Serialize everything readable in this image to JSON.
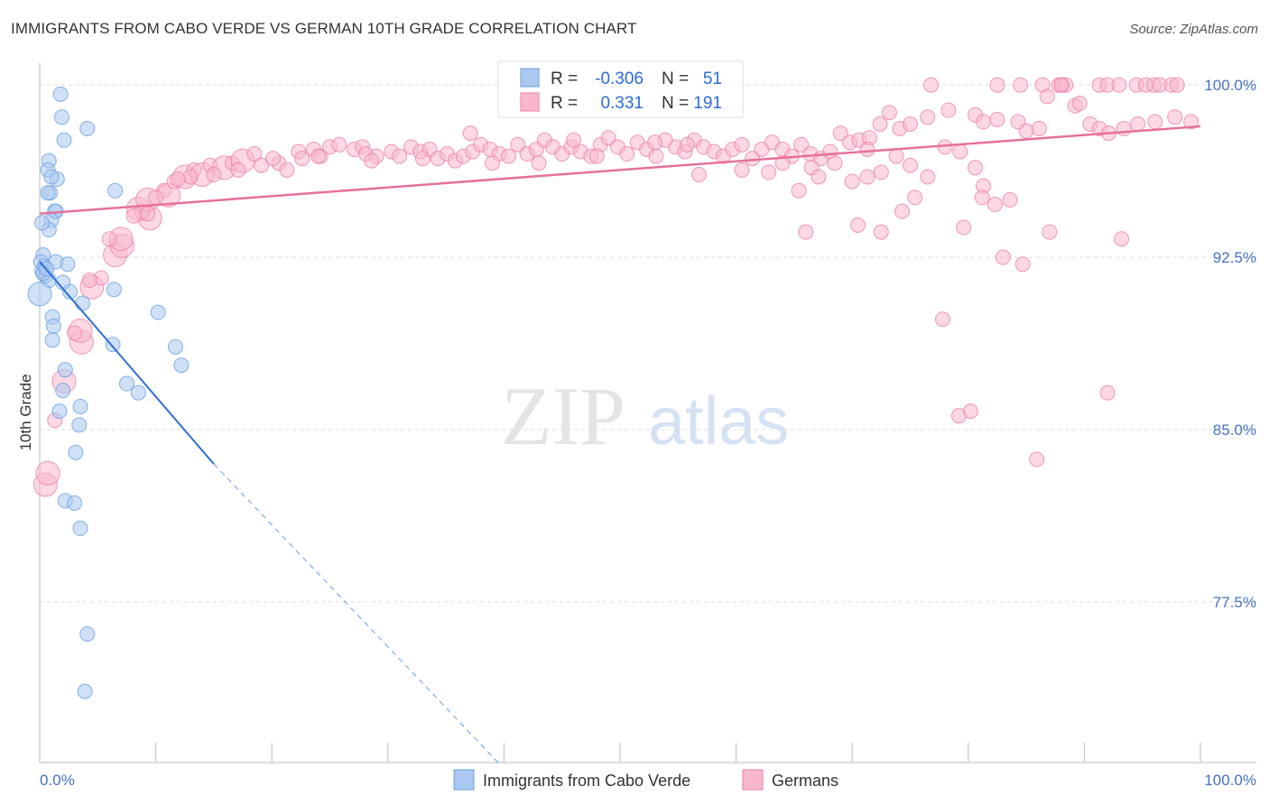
{
  "title": "IMMIGRANTS FROM CABO VERDE VS GERMAN 10TH GRADE CORRELATION CHART",
  "source": "Source: ZipAtlas.com",
  "watermark": {
    "zip": "ZIP",
    "atlas": "atlas"
  },
  "colors": {
    "blue": "#6a9fe0",
    "blue_fill": "#aac8f0",
    "blue_line": "#2f6fd1",
    "pink": "#ee7fa6",
    "pink_fill": "#f7b8cd",
    "pink_line": "#e5719b",
    "grid": "#dcdcdc",
    "tick_text": "#4472c4"
  },
  "legend": {
    "blue": {
      "r_label": "R =",
      "r_value": "-0.306",
      "n_label": "N =",
      "n_value": "51"
    },
    "pink": {
      "r_label": "R =",
      "r_value": "0.331",
      "n_label": "N =",
      "n_value": "191"
    }
  },
  "chart_data": {
    "type": "scatter",
    "title": "IMMIGRANTS FROM CABO VERDE VS GERMAN 10TH GRADE CORRELATION CHART",
    "xlabel": "",
    "ylabel": "10th Grade",
    "xlim": [
      0,
      100
    ],
    "ylim": [
      70.5,
      101.5
    ],
    "x_tick_labels": [
      "0.0%",
      "100.0%"
    ],
    "y_ticks": [
      77.5,
      85.0,
      92.5,
      100.0
    ],
    "y_tick_labels": [
      "77.5%",
      "85.0%",
      "92.5%",
      "100.0%"
    ],
    "legend_placement": "top-center",
    "series": [
      {
        "name": "Immigrants from Cabo Verde",
        "color": "#6a9fe0",
        "r": -0.306,
        "n": 51,
        "trend": {
          "x0": 0.0,
          "y0": 92.3,
          "x1": 15.0,
          "y1": 83.5,
          "dash_to_x": 39.5,
          "dash_to_y": 70.5
        },
        "points": [
          [
            1.8,
            99.6
          ],
          [
            1.9,
            98.6
          ],
          [
            2.1,
            97.6
          ],
          [
            4.1,
            98.1
          ],
          [
            0.8,
            96.7
          ],
          [
            0.7,
            96.3
          ],
          [
            1.5,
            95.9
          ],
          [
            1.0,
            96.0
          ],
          [
            0.9,
            95.3
          ],
          [
            0.7,
            95.3
          ],
          [
            1.3,
            94.5
          ],
          [
            1.4,
            94.5
          ],
          [
            1.0,
            94.1
          ],
          [
            0.8,
            93.7
          ],
          [
            0.2,
            94.0
          ],
          [
            0.3,
            92.6
          ],
          [
            0.1,
            92.3
          ],
          [
            0.4,
            92.1
          ],
          [
            0.2,
            91.9
          ],
          [
            0.5,
            91.7
          ],
          [
            0.8,
            91.5
          ],
          [
            1.4,
            92.3
          ],
          [
            2.4,
            92.2
          ],
          [
            2.0,
            91.4
          ],
          [
            2.6,
            91.0
          ],
          [
            3.7,
            90.5
          ],
          [
            6.4,
            91.1
          ],
          [
            0.0,
            90.9
          ],
          [
            1.1,
            89.9
          ],
          [
            1.2,
            89.5
          ],
          [
            1.1,
            88.9
          ],
          [
            6.3,
            88.7
          ],
          [
            10.2,
            90.1
          ],
          [
            11.7,
            88.6
          ],
          [
            12.2,
            87.8
          ],
          [
            2.2,
            87.6
          ],
          [
            2.0,
            86.7
          ],
          [
            7.5,
            87.0
          ],
          [
            8.5,
            86.6
          ],
          [
            3.5,
            86.0
          ],
          [
            1.7,
            85.8
          ],
          [
            3.4,
            85.2
          ],
          [
            3.1,
            84.0
          ],
          [
            2.2,
            81.9
          ],
          [
            3.0,
            81.8
          ],
          [
            3.5,
            80.7
          ],
          [
            4.1,
            76.1
          ],
          [
            3.9,
            73.6
          ],
          [
            0.3,
            91.8
          ],
          [
            0.6,
            92.0
          ],
          [
            6.5,
            95.4
          ]
        ],
        "sizes": [
          1,
          1,
          1,
          1,
          1,
          1,
          1,
          1,
          1,
          1,
          1,
          1,
          1,
          1,
          1,
          1,
          1,
          1,
          1,
          1,
          1,
          1,
          1,
          1,
          1,
          1,
          1,
          2,
          1,
          1,
          1,
          1,
          1,
          1,
          1,
          1,
          1,
          1,
          1,
          1,
          1,
          1,
          1,
          1,
          1,
          1,
          1,
          1,
          1,
          1,
          1
        ]
      },
      {
        "name": "Germans",
        "color": "#ee7fa6",
        "r": 0.331,
        "n": 191,
        "trend": {
          "x0": 0.0,
          "y0": 94.4,
          "x1": 100.0,
          "y1": 98.2
        },
        "points": [
          [
            0.5,
            82.6
          ],
          [
            0.7,
            83.1
          ],
          [
            1.3,
            85.4
          ],
          [
            2.1,
            87.1
          ],
          [
            3.6,
            88.8
          ],
          [
            3.5,
            89.3
          ],
          [
            4.5,
            91.2
          ],
          [
            5.3,
            91.6
          ],
          [
            6.5,
            92.6
          ],
          [
            7.1,
            93.0
          ],
          [
            7.0,
            93.3
          ],
          [
            9.5,
            94.2
          ],
          [
            8.5,
            94.6
          ],
          [
            8.8,
            94.5
          ],
          [
            9.3,
            95.0
          ],
          [
            10.7,
            95.4
          ],
          [
            11.1,
            95.2
          ],
          [
            11.6,
            95.8
          ],
          [
            12.5,
            96.0
          ],
          [
            13.3,
            96.3
          ],
          [
            14.0,
            96.1
          ],
          [
            14.7,
            96.5
          ],
          [
            15.9,
            96.4
          ],
          [
            16.6,
            96.6
          ],
          [
            17.5,
            96.7
          ],
          [
            18.5,
            97.0
          ],
          [
            19.1,
            96.5
          ],
          [
            20.6,
            96.6
          ],
          [
            21.3,
            96.3
          ],
          [
            22.3,
            97.1
          ],
          [
            22.6,
            96.8
          ],
          [
            23.6,
            97.2
          ],
          [
            24.2,
            96.9
          ],
          [
            25.0,
            97.3
          ],
          [
            25.8,
            97.4
          ],
          [
            27.1,
            97.2
          ],
          [
            27.8,
            97.3
          ],
          [
            28.1,
            97.0
          ],
          [
            29.0,
            96.9
          ],
          [
            30.3,
            97.1
          ],
          [
            31.0,
            96.9
          ],
          [
            32.0,
            97.3
          ],
          [
            32.8,
            97.1
          ],
          [
            33.6,
            97.2
          ],
          [
            34.3,
            96.8
          ],
          [
            35.1,
            97.0
          ],
          [
            35.8,
            96.7
          ],
          [
            36.5,
            96.9
          ],
          [
            37.3,
            97.1
          ],
          [
            38.0,
            97.4
          ],
          [
            38.8,
            97.2
          ],
          [
            39.6,
            97.0
          ],
          [
            40.4,
            96.9
          ],
          [
            41.2,
            97.4
          ],
          [
            42.0,
            97.0
          ],
          [
            42.8,
            97.2
          ],
          [
            43.5,
            97.6
          ],
          [
            44.2,
            97.3
          ],
          [
            45.0,
            97.0
          ],
          [
            45.8,
            97.3
          ],
          [
            46.6,
            97.1
          ],
          [
            47.5,
            96.9
          ],
          [
            48.3,
            97.4
          ],
          [
            49.0,
            97.7
          ],
          [
            49.8,
            97.3
          ],
          [
            50.6,
            97.0
          ],
          [
            51.5,
            97.5
          ],
          [
            52.3,
            97.2
          ],
          [
            53.1,
            96.9
          ],
          [
            53.9,
            97.6
          ],
          [
            54.8,
            97.3
          ],
          [
            55.6,
            97.1
          ],
          [
            56.4,
            97.6
          ],
          [
            57.2,
            97.3
          ],
          [
            58.1,
            97.1
          ],
          [
            58.9,
            96.9
          ],
          [
            59.7,
            97.2
          ],
          [
            60.5,
            97.4
          ],
          [
            61.4,
            96.8
          ],
          [
            62.2,
            97.2
          ],
          [
            63.1,
            97.5
          ],
          [
            64.0,
            97.2
          ],
          [
            64.8,
            96.9
          ],
          [
            65.6,
            97.4
          ],
          [
            66.4,
            97.0
          ],
          [
            67.3,
            96.8
          ],
          [
            68.1,
            97.1
          ],
          [
            69.0,
            97.9
          ],
          [
            69.8,
            97.5
          ],
          [
            70.6,
            97.6
          ],
          [
            71.5,
            97.7
          ],
          [
            72.4,
            98.3
          ],
          [
            73.2,
            98.8
          ],
          [
            74.1,
            98.1
          ],
          [
            75.0,
            98.3
          ],
          [
            76.5,
            98.6
          ],
          [
            78.3,
            98.9
          ],
          [
            80.6,
            98.7
          ],
          [
            81.3,
            98.4
          ],
          [
            82.5,
            98.5
          ],
          [
            84.3,
            98.4
          ],
          [
            85.0,
            98.0
          ],
          [
            86.1,
            98.1
          ],
          [
            89.2,
            99.1
          ],
          [
            90.5,
            98.3
          ],
          [
            91.3,
            98.1
          ],
          [
            92.1,
            97.9
          ],
          [
            93.4,
            98.1
          ],
          [
            94.6,
            98.3
          ],
          [
            96.1,
            98.4
          ],
          [
            97.8,
            98.6
          ],
          [
            99.2,
            98.4
          ],
          [
            76.8,
            100.0
          ],
          [
            82.5,
            100.0
          ],
          [
            84.5,
            100.0
          ],
          [
            86.4,
            100.0
          ],
          [
            87.8,
            100.0
          ],
          [
            88.1,
            100.0
          ],
          [
            88.4,
            100.0
          ],
          [
            91.3,
            100.0
          ],
          [
            92.0,
            100.0
          ],
          [
            93.0,
            100.0
          ],
          [
            94.5,
            100.0
          ],
          [
            95.3,
            100.0
          ],
          [
            96.0,
            100.0
          ],
          [
            96.5,
            100.0
          ],
          [
            97.5,
            100.0
          ],
          [
            98.0,
            100.0
          ],
          [
            88.0,
            100.0
          ],
          [
            86.8,
            99.5
          ],
          [
            89.6,
            99.2
          ],
          [
            56.8,
            96.1
          ],
          [
            60.5,
            96.3
          ],
          [
            62.8,
            96.2
          ],
          [
            64.0,
            96.6
          ],
          [
            66.5,
            96.4
          ],
          [
            68.5,
            96.6
          ],
          [
            70.0,
            95.8
          ],
          [
            71.3,
            97.2
          ],
          [
            72.5,
            96.2
          ],
          [
            73.8,
            96.9
          ],
          [
            75.0,
            96.5
          ],
          [
            76.5,
            96.0
          ],
          [
            78.0,
            97.3
          ],
          [
            79.3,
            97.1
          ],
          [
            80.6,
            96.4
          ],
          [
            81.3,
            95.6
          ],
          [
            82.3,
            94.8
          ],
          [
            83.6,
            95.0
          ],
          [
            65.4,
            95.4
          ],
          [
            67.1,
            96.0
          ],
          [
            71.3,
            96.0
          ],
          [
            66.0,
            93.6
          ],
          [
            70.5,
            93.9
          ],
          [
            72.5,
            93.6
          ],
          [
            74.3,
            94.5
          ],
          [
            75.4,
            95.1
          ],
          [
            79.6,
            93.8
          ],
          [
            81.2,
            95.1
          ],
          [
            83.0,
            92.5
          ],
          [
            84.7,
            92.2
          ],
          [
            87.0,
            93.6
          ],
          [
            93.2,
            93.3
          ],
          [
            77.8,
            89.8
          ],
          [
            79.2,
            85.6
          ],
          [
            80.2,
            85.8
          ],
          [
            85.9,
            83.7
          ],
          [
            92.0,
            86.6
          ],
          [
            37.1,
            97.9
          ],
          [
            46.0,
            97.6
          ],
          [
            53.0,
            97.5
          ],
          [
            55.8,
            97.4
          ],
          [
            43.0,
            96.6
          ],
          [
            48.0,
            96.9
          ],
          [
            39.0,
            96.6
          ],
          [
            33.0,
            96.8
          ],
          [
            28.6,
            96.7
          ],
          [
            24.0,
            96.9
          ],
          [
            20.1,
            96.8
          ],
          [
            17.1,
            96.3
          ],
          [
            15.0,
            96.1
          ],
          [
            13.0,
            96.0
          ],
          [
            11.9,
            95.9
          ],
          [
            10.0,
            95.1
          ],
          [
            9.3,
            94.4
          ],
          [
            8.1,
            94.3
          ],
          [
            6.0,
            93.3
          ],
          [
            4.3,
            91.5
          ],
          [
            3.0,
            89.2
          ]
        ],
        "sizes": [
          2,
          2,
          1,
          2,
          2,
          2,
          2,
          1,
          2,
          2,
          2,
          2,
          2,
          1,
          2,
          1,
          2,
          1,
          2,
          1,
          2,
          1,
          2,
          1,
          2,
          1,
          1,
          1,
          1,
          1,
          1,
          1,
          1,
          1,
          1,
          1,
          1,
          1,
          1,
          1,
          1,
          1,
          1,
          1,
          1,
          1,
          1,
          1,
          1,
          1,
          1,
          1,
          1,
          1,
          1,
          1,
          1,
          1,
          1,
          1,
          1,
          1,
          1,
          1,
          1,
          1,
          1,
          1,
          1,
          1,
          1,
          1,
          1,
          1,
          1,
          1,
          1,
          1,
          1,
          1,
          1,
          1,
          1,
          1,
          1,
          1,
          1,
          1,
          1,
          1,
          1,
          1,
          1,
          1,
          1,
          1,
          1,
          1,
          1,
          1,
          1,
          1,
          1,
          1,
          1,
          1,
          1,
          1,
          1,
          1,
          1,
          1,
          1,
          1,
          1,
          1,
          1,
          1,
          1,
          1,
          1,
          1,
          1,
          1,
          1,
          1,
          1,
          1,
          1,
          1,
          1,
          1,
          1,
          1,
          1,
          1,
          1,
          1,
          1,
          1,
          1,
          1,
          1,
          1,
          1,
          1,
          1,
          1,
          1,
          1,
          1,
          1,
          1,
          1,
          1,
          1,
          1,
          1,
          1,
          1,
          1,
          1,
          1,
          1,
          1,
          1,
          1,
          1,
          1,
          1,
          1,
          1,
          1,
          1,
          1,
          1,
          1,
          1,
          1,
          1,
          1,
          1,
          1,
          1,
          1,
          1,
          1,
          1,
          1,
          1,
          1
        ]
      }
    ]
  }
}
